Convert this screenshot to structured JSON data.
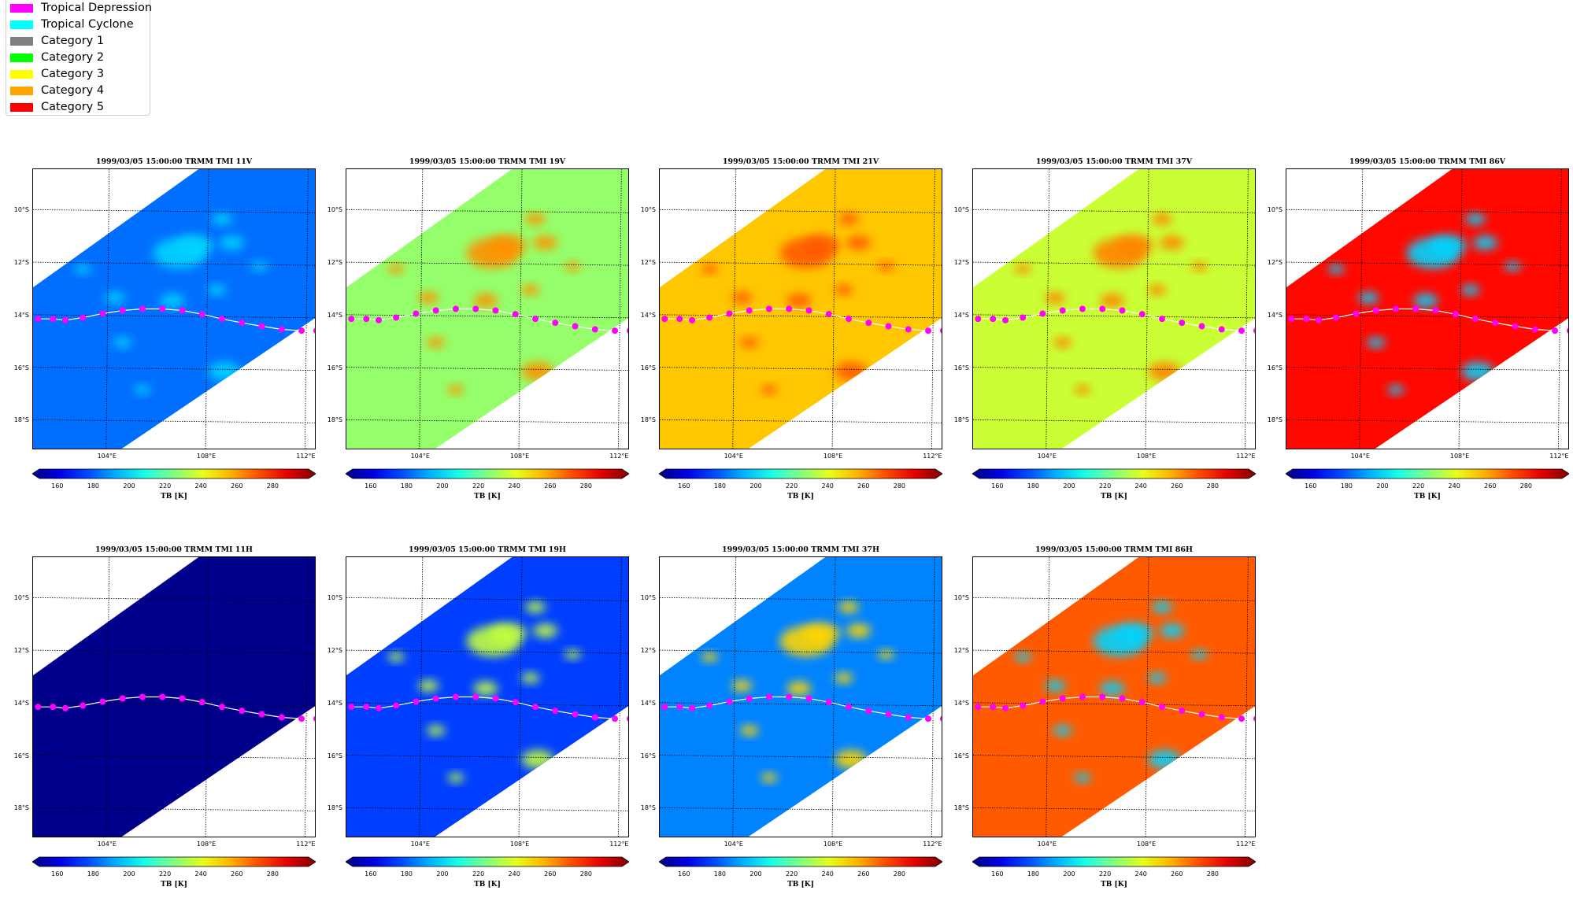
{
  "legend": {
    "items": [
      {
        "label": "Tropical Depression",
        "color": "#ff00ff"
      },
      {
        "label": "Tropical Cyclone",
        "color": "#00ffff"
      },
      {
        "label": "Category 1",
        "color": "#808080"
      },
      {
        "label": "Category 2",
        "color": "#00ff00"
      },
      {
        "label": "Category 3",
        "color": "#ffff00"
      },
      {
        "label": "Category 4",
        "color": "#ffa500"
      },
      {
        "label": "Category 5",
        "color": "#ff0000"
      }
    ]
  },
  "colorbar": {
    "ticks": [
      "160",
      "180",
      "200",
      "220",
      "240",
      "260",
      "280"
    ],
    "label": "TB [K]",
    "range": [
      150,
      300
    ],
    "colormap": "jet",
    "extend": "both"
  },
  "axes": {
    "lat_labels": [
      "10°S",
      "12°S",
      "14°S",
      "16°S",
      "18°S"
    ],
    "lon_labels": [
      "104°E",
      "108°E",
      "112°E"
    ]
  },
  "track": {
    "color": "#ff00ff",
    "line_color": "#ffffff",
    "points_lon": [
      101.2,
      101.8,
      102.3,
      103.0,
      103.8,
      104.6,
      105.4,
      106.2,
      107.0,
      107.8,
      108.6,
      109.4,
      110.2,
      111.0,
      111.8,
      112.4
    ],
    "points_lat": [
      -14.1,
      -14.1,
      -14.15,
      -14.05,
      -13.9,
      -13.78,
      -13.72,
      -13.72,
      -13.78,
      -13.92,
      -14.1,
      -14.25,
      -14.38,
      -14.5,
      -14.55,
      -14.55
    ]
  },
  "panels": [
    {
      "title": "1999/03/05 15:00:00  TRMM TMI 11V",
      "base_tb": 185,
      "cloud_tb": 200
    },
    {
      "title": "1999/03/05 15:00:00  TRMM TMI 19V",
      "base_tb": 228,
      "cloud_tb": 260
    },
    {
      "title": "1999/03/05 15:00:00  TRMM TMI 21V",
      "base_tb": 252,
      "cloud_tb": 268
    },
    {
      "title": "1999/03/05 15:00:00  TRMM TMI 37V",
      "base_tb": 236,
      "cloud_tb": 262
    },
    {
      "title": "1999/03/05 15:00:00  TRMM TMI 86V",
      "base_tb": 280,
      "cloud_tb": 200
    },
    {
      "title": "1999/03/05 15:00:00  TRMM TMI 11H",
      "base_tb": 152,
      "cloud_tb": 152
    },
    {
      "title": "1999/03/05 15:00:00  TRMM TMI 19H",
      "base_tb": 178,
      "cloud_tb": 235
    },
    {
      "title": "1999/03/05 15:00:00  TRMM TMI 37H",
      "base_tb": 188,
      "cloud_tb": 250
    },
    {
      "title": "1999/03/05 15:00:00  TRMM TMI 86H",
      "base_tb": 268,
      "cloud_tb": 200
    }
  ]
}
